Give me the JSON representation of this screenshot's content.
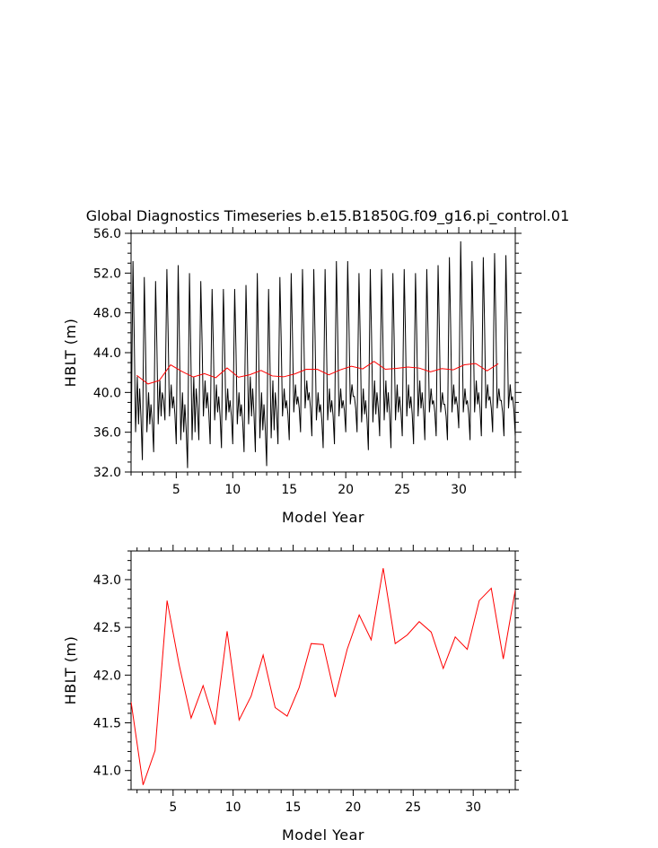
{
  "title": "Global Diagnostics Timeseries b.e15.B1850G.f09_g16.pi_control.01",
  "chart_data": [
    {
      "type": "line",
      "xlabel": "Model Year",
      "ylabel": "HBLT (m)",
      "xlim": [
        1,
        35
      ],
      "ylim": [
        32,
        56
      ],
      "xticks": [
        5,
        10,
        15,
        20,
        25,
        30
      ],
      "yticks": [
        32.0,
        36.0,
        40.0,
        44.0,
        48.0,
        52.0,
        56.0
      ],
      "ytick_labels": [
        "32.0",
        "36.0",
        "40.0",
        "44.0",
        "48.0",
        "52.0",
        "56.0"
      ],
      "series": [
        {
          "role": "monthly",
          "color": "#000000",
          "annual_maxima": [
            53.2,
            51.6,
            51.2,
            52.4,
            52.8,
            52.0,
            51.2,
            50.4,
            50.4,
            50.4,
            50.8,
            52.0,
            50.4,
            51.6,
            52.0,
            52.4,
            52.4,
            52.4,
            53.2,
            53.2,
            52.0,
            52.4,
            52.4,
            52.0,
            52.4,
            52.0,
            52.4,
            52.8,
            53.6,
            55.2,
            53.2,
            53.6,
            54.0,
            53.8
          ],
          "annual_minima": [
            33.6,
            33.2,
            34.0,
            37.2,
            34.8,
            32.4,
            35.2,
            34.8,
            34.4,
            34.8,
            34.0,
            34.0,
            32.6,
            34.8,
            35.2,
            36.0,
            35.6,
            34.4,
            34.8,
            36.0,
            36.0,
            34.2,
            35.6,
            34.4,
            35.6,
            34.8,
            35.2,
            35.6,
            35.2,
            36.4,
            35.2,
            35.6,
            36.0,
            35.6
          ],
          "secondary_peaks": [
            41.6,
            40.0,
            41.2,
            40.8,
            40.0,
            41.6,
            41.2,
            40.8,
            40.4,
            40.0,
            41.6,
            40.0,
            41.2,
            40.4,
            40.8,
            41.2,
            40.0,
            40.4,
            40.4,
            40.8,
            40.4,
            41.2,
            41.2,
            40.8,
            40.8,
            41.2,
            40.4,
            40.0,
            40.8,
            40.4,
            41.2,
            40.8,
            40.4,
            40.8
          ]
        },
        {
          "role": "annual-mean",
          "color": "#ff0000",
          "x": [
            1.5,
            2.5,
            3.5,
            4.5,
            5.5,
            6.5,
            7.5,
            8.5,
            9.5,
            10.5,
            11.5,
            12.5,
            13.5,
            14.5,
            15.5,
            16.5,
            17.5,
            18.5,
            19.5,
            20.5,
            21.5,
            22.5,
            23.5,
            24.5,
            25.5,
            26.5,
            27.5,
            28.5,
            29.5,
            30.5,
            31.5,
            32.5,
            33.5
          ],
          "values": [
            41.72,
            40.85,
            41.21,
            42.78,
            42.11,
            41.55,
            41.89,
            41.48,
            42.46,
            41.53,
            41.78,
            42.21,
            41.66,
            41.57,
            41.87,
            42.33,
            42.32,
            41.77,
            42.27,
            42.63,
            42.37,
            43.12,
            42.33,
            42.42,
            42.56,
            42.45,
            42.07,
            42.4,
            42.27,
            42.78,
            42.91,
            42.17,
            42.89
          ]
        }
      ]
    },
    {
      "type": "line",
      "xlabel": "Model Year",
      "ylabel": "HBLT (m)",
      "xlim": [
        1.5,
        33.5
      ],
      "ylim": [
        40.8,
        43.3
      ],
      "xticks": [
        5,
        10,
        15,
        20,
        25,
        30
      ],
      "yticks": [
        41.0,
        41.5,
        42.0,
        42.5,
        43.0
      ],
      "ytick_labels": [
        "41.0",
        "41.5",
        "42.0",
        "42.5",
        "43.0"
      ],
      "series": [
        {
          "role": "annual-mean",
          "color": "#ff0000",
          "x": [
            1.5,
            2.5,
            3.5,
            4.5,
            5.5,
            6.5,
            7.5,
            8.5,
            9.5,
            10.5,
            11.5,
            12.5,
            13.5,
            14.5,
            15.5,
            16.5,
            17.5,
            18.5,
            19.5,
            20.5,
            21.5,
            22.5,
            23.5,
            24.5,
            25.5,
            26.5,
            27.5,
            28.5,
            29.5,
            30.5,
            31.5,
            32.5,
            33.5
          ],
          "values": [
            41.72,
            40.85,
            41.21,
            42.78,
            42.11,
            41.55,
            41.89,
            41.48,
            42.46,
            41.53,
            41.78,
            42.21,
            41.66,
            41.57,
            41.87,
            42.33,
            42.32,
            41.77,
            42.27,
            42.63,
            42.37,
            43.12,
            42.33,
            42.42,
            42.56,
            42.45,
            42.07,
            42.4,
            42.27,
            42.78,
            42.91,
            42.17,
            42.89
          ]
        }
      ]
    }
  ]
}
